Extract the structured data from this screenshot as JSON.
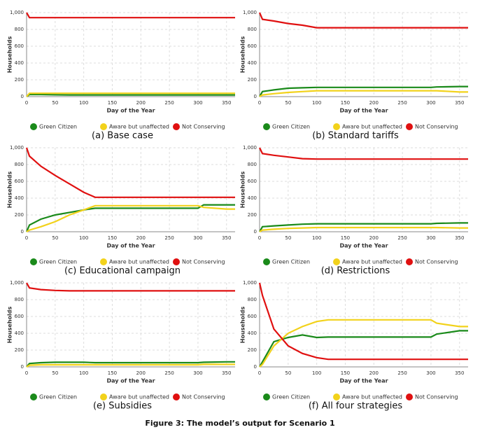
{
  "figure_caption": "Figure 3: The model’s output for Scenario 1",
  "chart_data": [
    {
      "type": "line",
      "caption": "(a) Base case",
      "x_label": "Day of the Year",
      "y_label": "Households",
      "x": [
        0,
        5,
        25,
        50,
        75,
        100,
        120,
        150,
        200,
        250,
        300,
        310,
        350,
        365
      ],
      "series": [
        {
          "name": "Green Citizen",
          "color": "#1a8a1a",
          "values": [
            0,
            25,
            25,
            22,
            20,
            20,
            20,
            20,
            20,
            20,
            20,
            20,
            20,
            20
          ]
        },
        {
          "name": "Aware but unaffected",
          "color": "#f2d21b",
          "values": [
            0,
            40,
            40,
            40,
            40,
            40,
            40,
            40,
            40,
            40,
            40,
            40,
            40,
            40
          ]
        },
        {
          "name": "Not Conserving",
          "color": "#e01010",
          "values": [
            1000,
            940,
            940,
            940,
            940,
            940,
            940,
            940,
            940,
            940,
            940,
            940,
            940,
            940
          ]
        }
      ],
      "xlim": [
        0,
        365
      ],
      "xticks": [
        0,
        50,
        100,
        150,
        200,
        250,
        300,
        350
      ],
      "ylim": [
        0,
        1000
      ],
      "yticks": [
        0,
        200,
        400,
        600,
        800,
        {
          "value": 1000,
          "label": "1,000"
        }
      ],
      "grid": true
    },
    {
      "type": "line",
      "caption": "(b) Standard tariffs",
      "x_label": "Day of the Year",
      "y_label": "Households",
      "x": [
        0,
        5,
        25,
        50,
        75,
        100,
        120,
        150,
        200,
        250,
        300,
        310,
        350,
        365
      ],
      "series": [
        {
          "name": "Green Citizen",
          "color": "#1a8a1a",
          "values": [
            0,
            60,
            80,
            100,
            105,
            110,
            110,
            110,
            110,
            110,
            110,
            115,
            120,
            120
          ]
        },
        {
          "name": "Aware but unaffected",
          "color": "#f2d21b",
          "values": [
            0,
            20,
            35,
            50,
            60,
            70,
            70,
            70,
            70,
            70,
            70,
            70,
            55,
            55
          ]
        },
        {
          "name": "Not Conserving",
          "color": "#e01010",
          "values": [
            1000,
            920,
            900,
            870,
            850,
            820,
            820,
            820,
            820,
            820,
            820,
            820,
            820,
            820
          ]
        }
      ],
      "xlim": [
        0,
        365
      ],
      "xticks": [
        0,
        50,
        100,
        150,
        200,
        250,
        300,
        350
      ],
      "ylim": [
        0,
        1000
      ],
      "yticks": [
        0,
        200,
        400,
        600,
        800,
        {
          "value": 1000,
          "label": "1,000"
        }
      ],
      "grid": true
    },
    {
      "type": "line",
      "caption": "(c) Educational campaign",
      "x_label": "Day of the Year",
      "y_label": "Households",
      "x": [
        0,
        5,
        25,
        50,
        75,
        100,
        120,
        150,
        200,
        250,
        300,
        310,
        350,
        365
      ],
      "series": [
        {
          "name": "Green Citizen",
          "color": "#1a8a1a",
          "values": [
            0,
            80,
            150,
            200,
            230,
            260,
            280,
            280,
            280,
            280,
            280,
            320,
            320,
            320
          ]
        },
        {
          "name": "Aware but unaffected",
          "color": "#f2d21b",
          "values": [
            0,
            20,
            60,
            120,
            200,
            260,
            310,
            310,
            310,
            310,
            310,
            290,
            270,
            270
          ]
        },
        {
          "name": "Not Conserving",
          "color": "#e01010",
          "values": [
            1000,
            900,
            780,
            670,
            570,
            470,
            410,
            410,
            410,
            410,
            410,
            410,
            410,
            410
          ]
        }
      ],
      "xlim": [
        0,
        365
      ],
      "xticks": [
        0,
        50,
        100,
        150,
        200,
        250,
        300,
        350
      ],
      "ylim": [
        0,
        1000
      ],
      "yticks": [
        0,
        200,
        400,
        600,
        800,
        {
          "value": 1000,
          "label": "1,000"
        }
      ],
      "grid": true
    },
    {
      "type": "line",
      "caption": "(d) Restrictions",
      "x_label": "Day of the Year",
      "y_label": "Households",
      "x": [
        0,
        5,
        25,
        50,
        75,
        100,
        120,
        150,
        200,
        250,
        300,
        310,
        350,
        365
      ],
      "series": [
        {
          "name": "Green Citizen",
          "color": "#1a8a1a",
          "values": [
            0,
            60,
            70,
            80,
            90,
            95,
            95,
            95,
            95,
            95,
            95,
            100,
            105,
            105
          ]
        },
        {
          "name": "Aware but unaffected",
          "color": "#f2d21b",
          "values": [
            0,
            20,
            30,
            40,
            45,
            50,
            50,
            50,
            50,
            50,
            50,
            50,
            45,
            45
          ]
        },
        {
          "name": "Not Conserving",
          "color": "#e01010",
          "values": [
            1000,
            930,
            910,
            890,
            870,
            865,
            865,
            865,
            865,
            865,
            865,
            865,
            865,
            865
          ]
        }
      ],
      "xlim": [
        0,
        365
      ],
      "xticks": [
        0,
        50,
        100,
        150,
        200,
        250,
        300,
        350
      ],
      "ylim": [
        0,
        1000
      ],
      "yticks": [
        0,
        200,
        400,
        600,
        800,
        {
          "value": 1000,
          "label": "1,000"
        }
      ],
      "grid": true
    },
    {
      "type": "line",
      "caption": "(e) Subsidies",
      "x_label": "Day of the Year",
      "y_label": "Households",
      "x": [
        0,
        5,
        25,
        50,
        75,
        100,
        120,
        150,
        200,
        250,
        300,
        310,
        350,
        365
      ],
      "series": [
        {
          "name": "Green Citizen",
          "color": "#1a8a1a",
          "values": [
            0,
            40,
            50,
            55,
            55,
            55,
            50,
            50,
            50,
            50,
            50,
            55,
            60,
            60
          ]
        },
        {
          "name": "Aware but unaffected",
          "color": "#f2d21b",
          "values": [
            0,
            20,
            25,
            25,
            25,
            25,
            25,
            25,
            25,
            25,
            25,
            30,
            30,
            30
          ]
        },
        {
          "name": "Not Conserving",
          "color": "#e01010",
          "values": [
            1000,
            940,
            920,
            910,
            905,
            905,
            905,
            905,
            905,
            905,
            905,
            905,
            905,
            905
          ]
        }
      ],
      "xlim": [
        0,
        365
      ],
      "xticks": [
        0,
        50,
        100,
        150,
        200,
        250,
        300,
        350
      ],
      "ylim": [
        0,
        1000
      ],
      "yticks": [
        0,
        200,
        400,
        600,
        800,
        {
          "value": 1000,
          "label": "1,000"
        }
      ],
      "grid": true
    },
    {
      "type": "line",
      "caption": "(f) All four strategies",
      "x_label": "Day of the Year",
      "y_label": "Households",
      "x": [
        0,
        5,
        25,
        50,
        75,
        100,
        120,
        150,
        200,
        250,
        300,
        310,
        350,
        365
      ],
      "series": [
        {
          "name": "Green Citizen",
          "color": "#1a8a1a",
          "values": [
            0,
            60,
            300,
            350,
            380,
            350,
            355,
            355,
            355,
            355,
            355,
            390,
            430,
            430
          ]
        },
        {
          "name": "Aware but unaffected",
          "color": "#f2d21b",
          "values": [
            0,
            30,
            250,
            400,
            480,
            540,
            560,
            560,
            560,
            560,
            560,
            520,
            480,
            480
          ]
        },
        {
          "name": "Not Conserving",
          "color": "#e01010",
          "values": [
            1000,
            850,
            450,
            250,
            160,
            110,
            90,
            90,
            90,
            90,
            90,
            90,
            90,
            90
          ]
        }
      ],
      "xlim": [
        0,
        365
      ],
      "xticks": [
        0,
        50,
        100,
        150,
        200,
        250,
        300,
        350
      ],
      "ylim": [
        0,
        1000
      ],
      "yticks": [
        0,
        200,
        400,
        600,
        800,
        {
          "value": 1000,
          "label": "1,000"
        }
      ],
      "grid": true
    }
  ]
}
